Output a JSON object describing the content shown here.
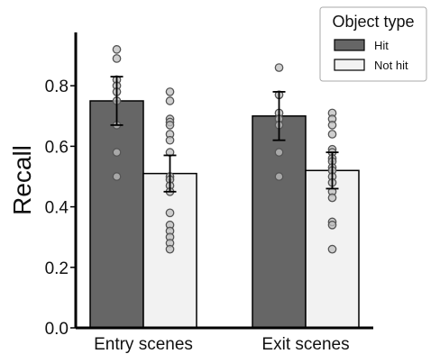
{
  "chart_data": {
    "type": "bar",
    "ylabel": "Recall",
    "xlabel": "",
    "ylim": [
      0,
      1.0
    ],
    "yticks": [
      "0.0",
      "0.2",
      "0.4",
      "0.6",
      "0.8"
    ],
    "categories": [
      "Entry scenes",
      "Exit scenes"
    ],
    "legend": {
      "title": "Object type",
      "placement": "top-right"
    },
    "series": [
      {
        "name": "Hit",
        "color": "#666666",
        "values": [
          0.75,
          0.7
        ],
        "error": [
          [
            0.67,
            0.83
          ],
          [
            0.62,
            0.78
          ]
        ],
        "points": [
          [
            0.92,
            0.89,
            0.82,
            0.8,
            0.78,
            0.75,
            0.67,
            0.58,
            0.5
          ],
          [
            0.86,
            0.77,
            0.71,
            0.69,
            0.67,
            0.58,
            0.5
          ]
        ]
      },
      {
        "name": "Not hit",
        "color": "#f2f2f2",
        "values": [
          0.51,
          0.52
        ],
        "error": [
          [
            0.45,
            0.57
          ],
          [
            0.46,
            0.58
          ]
        ],
        "points": [
          [
            0.78,
            0.75,
            0.69,
            0.68,
            0.67,
            0.64,
            0.62,
            0.58,
            0.5,
            0.49,
            0.47,
            0.45,
            0.38,
            0.34,
            0.32,
            0.3,
            0.28,
            0.26
          ],
          [
            0.71,
            0.69,
            0.67,
            0.64,
            0.59,
            0.58,
            0.56,
            0.55,
            0.53,
            0.52,
            0.5,
            0.48,
            0.45,
            0.43,
            0.35,
            0.34,
            0.26
          ]
        ]
      }
    ]
  }
}
